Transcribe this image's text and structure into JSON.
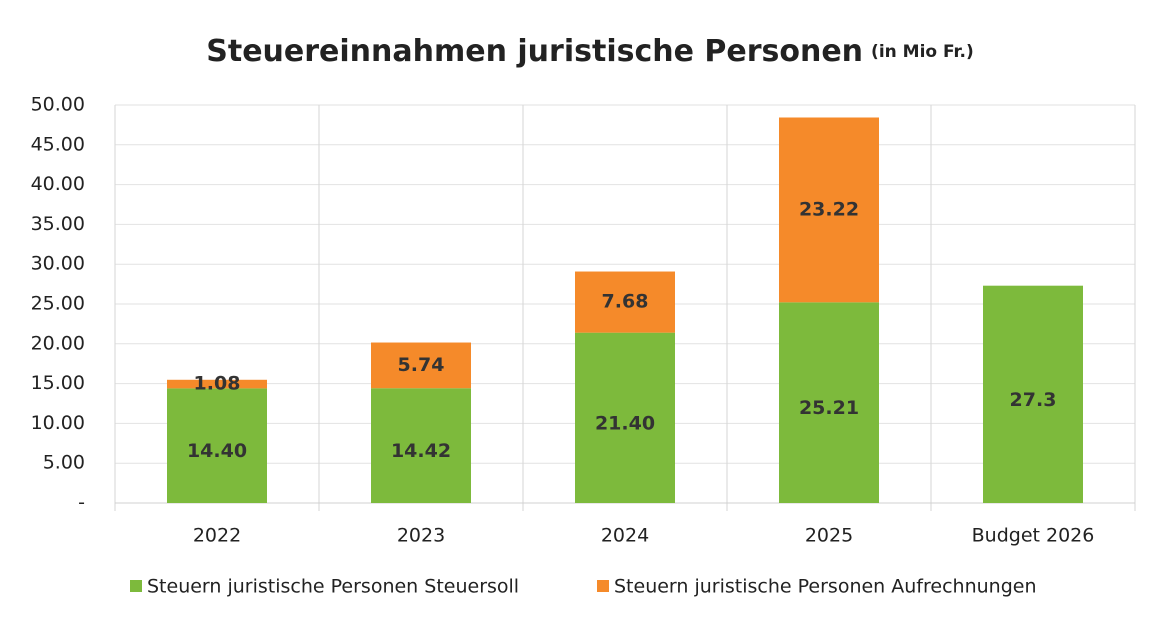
{
  "chart_data": {
    "type": "stacked_bar",
    "title": "Steuereinnahmen juristische Personen",
    "subtitle": "(in Mio Fr.)",
    "categories": [
      "2022",
      "2023",
      "2024",
      "2025",
      "Budget 2026"
    ],
    "series": [
      {
        "name": "Steuern juristische Personen Steuersoll",
        "color": "#7dba3c",
        "values": [
          14.4,
          14.42,
          21.4,
          25.21,
          27.3
        ],
        "value_labels": [
          "14.40",
          "14.42",
          "21.40",
          "25.21",
          "27.3"
        ]
      },
      {
        "name": "Steuern juristische Personen Aufrechnungen",
        "color": "#f58a2a",
        "values": [
          1.08,
          5.74,
          7.68,
          23.22,
          null
        ],
        "value_labels": [
          "1.08",
          "5.74",
          "7.68",
          "23.22",
          null
        ]
      }
    ],
    "ylim": [
      0,
      50
    ],
    "yticks": [
      {
        "value": 0,
        "label": "-"
      },
      {
        "value": 5,
        "label": "5.00"
      },
      {
        "value": 10,
        "label": "10.00"
      },
      {
        "value": 15,
        "label": "15.00"
      },
      {
        "value": 20,
        "label": "20.00"
      },
      {
        "value": 25,
        "label": "25.00"
      },
      {
        "value": 30,
        "label": "30.00"
      },
      {
        "value": 35,
        "label": "35.00"
      },
      {
        "value": 40,
        "label": "40.00"
      },
      {
        "value": 45,
        "label": "45.00"
      },
      {
        "value": 50,
        "label": "50.00"
      }
    ],
    "grid": true,
    "legend": "bottom"
  }
}
